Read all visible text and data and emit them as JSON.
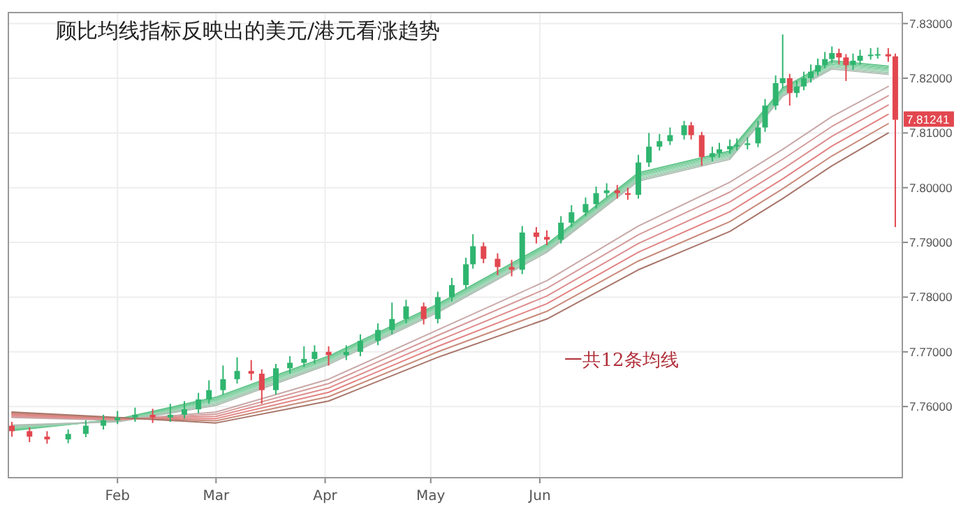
{
  "chart_data": {
    "type": "candlestick",
    "title": "顾比均线指标反映出的美元/港元看涨趋势",
    "x": [
      "--01-02",
      "--01-07",
      "--01-12",
      "--01-18",
      "--01-23",
      "--01-28",
      "--02-01",
      "--02-06",
      "--02-11",
      "--02-16",
      "--02-20",
      "--02-24",
      "--02-27",
      "--03-03",
      "--03-07",
      "--03-11",
      "--03-14",
      "--03-18",
      "--03-22",
      "--03-26",
      "--03-29",
      "--04-02",
      "--04-07",
      "--04-11",
      "--04-16",
      "--04-20",
      "--04-24",
      "--04-29",
      "--05-03",
      "--05-07",
      "--05-11",
      "--05-13",
      "--05-16",
      "--05-20",
      "--05-24",
      "--05-27",
      "--05-31",
      "--06-03",
      "--06-07",
      "--06-10",
      "--06-14",
      "--06-17",
      "--06-20",
      "--06-23",
      "--06-26",
      "--06-29",
      "--07-02",
      "--07-05",
      "--07-08",
      "--07-12",
      "--07-14",
      "--07-17",
      "--07-20",
      "--07-22",
      "--07-25",
      "--07-27",
      "--07-30",
      "--08-02",
      "--08-04",
      "--08-07",
      "--08-09",
      "--08-11",
      "--08-13",
      "--08-15",
      "--08-17",
      "--08-19",
      "--08-21",
      "--08-23",
      "--08-25",
      "--08-27",
      "--08-29",
      "--08-31",
      "--09-03",
      "--09-05",
      "--09-08",
      "--09-10"
    ],
    "ohlc": [
      [
        7.7565,
        7.7572,
        7.7545,
        7.7555
      ],
      [
        7.7555,
        7.7562,
        7.7535,
        7.7545
      ],
      [
        7.7545,
        7.7555,
        7.7532,
        7.754
      ],
      [
        7.754,
        7.7558,
        7.7533,
        7.755
      ],
      [
        7.755,
        7.7575,
        7.7544,
        7.7565
      ],
      [
        7.7565,
        7.7585,
        7.7558,
        7.7575
      ],
      [
        7.7575,
        7.7592,
        7.7568,
        7.758
      ],
      [
        7.758,
        7.7598,
        7.7572,
        7.7585
      ],
      [
        7.7585,
        7.7596,
        7.757,
        7.758
      ],
      [
        7.758,
        7.7605,
        7.7572,
        7.7585
      ],
      [
        7.7585,
        7.761,
        7.7578,
        7.7595
      ],
      [
        7.7595,
        7.7625,
        7.7588,
        7.7613
      ],
      [
        7.7613,
        7.7648,
        7.7605,
        7.763
      ],
      [
        7.763,
        7.7675,
        7.7622,
        7.765
      ],
      [
        7.765,
        7.769,
        7.7642,
        7.7665
      ],
      [
        7.7665,
        7.7685,
        7.7648,
        7.766
      ],
      [
        7.766,
        7.7668,
        7.7605,
        7.763
      ],
      [
        7.763,
        7.7678,
        7.7622,
        7.767
      ],
      [
        7.767,
        7.7692,
        7.766,
        7.768
      ],
      [
        7.768,
        7.771,
        7.7672,
        7.7687
      ],
      [
        7.7687,
        7.7712,
        7.7678,
        7.77
      ],
      [
        7.77,
        7.771,
        7.7675,
        7.7694
      ],
      [
        7.7694,
        7.7712,
        7.7685,
        7.77
      ],
      [
        7.77,
        7.7732,
        7.7692,
        7.772
      ],
      [
        7.772,
        7.7752,
        7.7712,
        7.774
      ],
      [
        7.774,
        7.779,
        7.7732,
        7.776
      ],
      [
        7.776,
        7.7795,
        7.7752,
        7.7783
      ],
      [
        7.7783,
        7.779,
        7.775,
        7.776
      ],
      [
        7.776,
        7.781,
        7.7752,
        7.78
      ],
      [
        7.78,
        7.7835,
        7.7792,
        7.7822
      ],
      [
        7.7822,
        7.7872,
        7.7815,
        7.786
      ],
      [
        7.786,
        7.7915,
        7.7852,
        7.7893
      ],
      [
        7.7893,
        7.79,
        7.7862,
        7.787
      ],
      [
        7.787,
        7.788,
        7.784,
        7.7855
      ],
      [
        7.7855,
        7.7868,
        7.7838,
        7.785
      ],
      [
        7.785,
        7.793,
        7.7842,
        7.7918
      ],
      [
        7.7918,
        7.7928,
        7.7898,
        7.791
      ],
      [
        7.791,
        7.7922,
        7.7895,
        7.7905
      ],
      [
        7.7905,
        7.7948,
        7.7898,
        7.7936
      ],
      [
        7.7936,
        7.7968,
        7.7928,
        7.7955
      ],
      [
        7.7955,
        7.7982,
        7.7948,
        7.797
      ],
      [
        7.797,
        7.8002,
        7.7962,
        7.799
      ],
      [
        7.799,
        7.8008,
        7.7982,
        7.7995
      ],
      [
        7.7995,
        7.8005,
        7.798,
        7.799
      ],
      [
        7.799,
        7.8,
        7.7978,
        7.7987
      ],
      [
        7.7987,
        7.806,
        7.798,
        7.8046
      ],
      [
        7.8046,
        7.81,
        7.8038,
        7.8075
      ],
      [
        7.8075,
        7.8098,
        7.8068,
        7.8085
      ],
      [
        7.8085,
        7.811,
        7.8078,
        7.8096
      ],
      [
        7.8096,
        7.8122,
        7.8088,
        7.8114
      ],
      [
        7.8114,
        7.812,
        7.8088,
        7.8096
      ],
      [
        7.8096,
        7.8102,
        7.804,
        7.8056
      ],
      [
        7.8056,
        7.8075,
        7.8048,
        7.8063
      ],
      [
        7.8063,
        7.8082,
        7.8055,
        7.807
      ],
      [
        7.807,
        7.8088,
        7.8062,
        7.8076
      ],
      [
        7.8076,
        7.809,
        7.8068,
        7.8078
      ],
      [
        7.8078,
        7.8092,
        7.807,
        7.8081
      ],
      [
        7.8081,
        7.8122,
        7.8074,
        7.811
      ],
      [
        7.811,
        7.8162,
        7.8102,
        7.815
      ],
      [
        7.815,
        7.8205,
        7.8142,
        7.8191
      ],
      [
        7.8191,
        7.828,
        7.8182,
        7.82
      ],
      [
        7.82,
        7.8208,
        7.815,
        7.8173
      ],
      [
        7.8173,
        7.8195,
        7.8165,
        7.8185
      ],
      [
        7.8185,
        7.8212,
        7.8178,
        7.82
      ],
      [
        7.82,
        7.8225,
        7.8192,
        7.8212
      ],
      [
        7.8212,
        7.8236,
        7.8205,
        7.8224
      ],
      [
        7.8224,
        7.8248,
        7.8218,
        7.8235
      ],
      [
        7.8235,
        7.8258,
        7.8228,
        7.8246
      ],
      [
        7.8246,
        7.8254,
        7.8225,
        7.8238
      ],
      [
        7.8238,
        7.8244,
        7.8195,
        7.8224
      ],
      [
        7.8224,
        7.8245,
        7.8215,
        7.8232
      ],
      [
        7.8232,
        7.8252,
        7.8225,
        7.8241
      ],
      [
        7.8241,
        7.8255,
        7.8234,
        7.8243
      ],
      [
        7.8243,
        7.8256,
        7.8236,
        7.8244
      ],
      [
        7.8244,
        7.8255,
        7.823,
        7.824
      ],
      [
        7.824,
        7.8245,
        7.7928,
        7.81241
      ]
    ],
    "colors": [
      "#e2474f",
      "#e2474f",
      "#e2474f",
      "#2fb56f",
      "#2fb56f",
      "#2fb56f",
      "#2fb56f",
      "#2fb56f",
      "#e2474f",
      "#2fb56f",
      "#2fb56f",
      "#2fb56f",
      "#2fb56f",
      "#2fb56f",
      "#2fb56f",
      "#e2474f",
      "#e2474f",
      "#2fb56f",
      "#2fb56f",
      "#2fb56f",
      "#2fb56f",
      "#e2474f",
      "#2fb56f",
      "#2fb56f",
      "#2fb56f",
      "#2fb56f",
      "#2fb56f",
      "#e2474f",
      "#2fb56f",
      "#2fb56f",
      "#2fb56f",
      "#2fb56f",
      "#e2474f",
      "#e2474f",
      "#e2474f",
      "#2fb56f",
      "#e2474f",
      "#e2474f",
      "#2fb56f",
      "#2fb56f",
      "#2fb56f",
      "#2fb56f",
      "#2fb56f",
      "#e2474f",
      "#e2474f",
      "#2fb56f",
      "#2fb56f",
      "#2fb56f",
      "#2fb56f",
      "#2fb56f",
      "#e2474f",
      "#e2474f",
      "#2fb56f",
      "#2fb56f",
      "#2fb56f",
      "#2fb56f",
      "#2fb56f",
      "#2fb56f",
      "#2fb56f",
      "#2fb56f",
      "#2fb56f",
      "#e2474f",
      "#2fb56f",
      "#2fb56f",
      "#2fb56f",
      "#2fb56f",
      "#2fb56f",
      "#2fb56f",
      "#e2474f",
      "#e2474f",
      "#2fb56f",
      "#2fb56f",
      "#2fb56f",
      "#2fb56f",
      "#e2474f",
      "#e2474f"
    ],
    "series": [
      {
        "type": "line",
        "color": "#5cc486",
        "x": [
          "--01-02",
          "--02-01",
          "--03-01",
          "--04-02",
          "--05-03",
          "--06-03",
          "--06-29",
          "--07-25",
          "--08-09",
          "--08-23",
          "--09-08"
        ],
        "values": [
          7.7556,
          7.7577,
          7.7617,
          7.7692,
          7.7787,
          7.7897,
          7.8027,
          7.8067,
          7.8182,
          7.8232,
          7.8222
        ]
      },
      {
        "type": "line",
        "color": "#6fca94",
        "x": [
          "--01-02",
          "--02-01",
          "--03-01",
          "--04-02",
          "--05-03",
          "--06-03",
          "--06-29",
          "--07-25",
          "--08-09",
          "--08-23",
          "--09-08"
        ],
        "values": [
          7.7558,
          7.7576,
          7.7614,
          7.7689,
          7.7784,
          7.7894,
          7.8024,
          7.8064,
          7.8179,
          7.8229,
          7.8219
        ]
      },
      {
        "type": "line",
        "color": "#82d0a2",
        "x": [
          "--01-02",
          "--02-01",
          "--03-01",
          "--04-02",
          "--05-03",
          "--06-03",
          "--06-29",
          "--07-25",
          "--08-09",
          "--08-23",
          "--09-08"
        ],
        "values": [
          7.756,
          7.7575,
          7.7611,
          7.7686,
          7.7781,
          7.7891,
          7.8021,
          7.8061,
          7.8176,
          7.8226,
          7.8216
        ]
      },
      {
        "type": "line",
        "color": "#95d6b0",
        "x": [
          "--01-02",
          "--02-01",
          "--03-01",
          "--04-02",
          "--05-03",
          "--06-03",
          "--06-29",
          "--07-25",
          "--08-09",
          "--08-23",
          "--09-08"
        ],
        "values": [
          7.7562,
          7.7574,
          7.7608,
          7.7683,
          7.7778,
          7.7888,
          7.8018,
          7.8058,
          7.8173,
          7.8223,
          7.8213
        ]
      },
      {
        "type": "line",
        "color": "#a3c9b1",
        "x": [
          "--01-02",
          "--02-01",
          "--03-01",
          "--04-02",
          "--05-03",
          "--06-03",
          "--06-29",
          "--07-25",
          "--08-09",
          "--08-23",
          "--09-08"
        ],
        "values": [
          7.7564,
          7.7573,
          7.7605,
          7.768,
          7.7775,
          7.7885,
          7.8015,
          7.8055,
          7.817,
          7.822,
          7.821
        ]
      },
      {
        "type": "line",
        "color": "#b0bfb5",
        "x": [
          "--01-02",
          "--02-01",
          "--03-01",
          "--04-02",
          "--05-03",
          "--06-03",
          "--06-29",
          "--07-25",
          "--08-09",
          "--08-23",
          "--09-08"
        ],
        "values": [
          7.7566,
          7.7572,
          7.7602,
          7.7677,
          7.7772,
          7.7882,
          7.8012,
          7.8052,
          7.8167,
          7.8217,
          7.8207
        ]
      },
      {
        "type": "line",
        "color": "#c9a8a8",
        "x": [
          "--01-02",
          "--02-01",
          "--03-01",
          "--04-02",
          "--05-03",
          "--06-03",
          "--06-29",
          "--07-25",
          "--08-09",
          "--08-23",
          "--09-08"
        ],
        "values": [
          7.758,
          7.7575,
          7.759,
          7.765,
          7.774,
          7.783,
          7.793,
          7.801,
          7.807,
          7.813,
          7.8185
        ]
      },
      {
        "type": "line",
        "color": "#d69a9a",
        "x": [
          "--01-02",
          "--02-01",
          "--03-01",
          "--04-02",
          "--05-03",
          "--06-03",
          "--06-29",
          "--07-25",
          "--08-09",
          "--08-23",
          "--09-08"
        ],
        "values": [
          7.7582,
          7.7576,
          7.7586,
          7.7642,
          7.773,
          7.7816,
          7.7914,
          7.7992,
          7.8052,
          7.8112,
          7.8168
        ]
      },
      {
        "type": "line",
        "color": "#de8e8e",
        "x": [
          "--01-02",
          "--02-01",
          "--03-01",
          "--04-02",
          "--05-03",
          "--06-03",
          "--06-29",
          "--07-25",
          "--08-09",
          "--08-23",
          "--09-08"
        ],
        "values": [
          7.7584,
          7.7577,
          7.7582,
          7.7634,
          7.772,
          7.7802,
          7.7898,
          7.7974,
          7.8034,
          7.8094,
          7.8151
        ]
      },
      {
        "type": "line",
        "color": "#e38383",
        "x": [
          "--01-02",
          "--02-01",
          "--03-01",
          "--04-02",
          "--05-03",
          "--06-03",
          "--06-29",
          "--07-25",
          "--08-09",
          "--08-23",
          "--09-08"
        ],
        "values": [
          7.7586,
          7.7578,
          7.7578,
          7.7626,
          7.771,
          7.7788,
          7.7882,
          7.7956,
          7.8016,
          7.8076,
          7.8134
        ]
      },
      {
        "type": "line",
        "color": "#c98a7a",
        "x": [
          "--01-02",
          "--02-01",
          "--03-01",
          "--04-02",
          "--05-03",
          "--06-03",
          "--06-29",
          "--07-25",
          "--08-09",
          "--08-23",
          "--09-08"
        ],
        "values": [
          7.7588,
          7.7579,
          7.7574,
          7.7618,
          7.77,
          7.7774,
          7.7866,
          7.7938,
          7.7998,
          7.8058,
          7.8117
        ]
      },
      {
        "type": "line",
        "color": "#a8756a",
        "x": [
          "--01-02",
          "--02-01",
          "--03-01",
          "--04-02",
          "--05-03",
          "--06-03",
          "--06-29",
          "--07-25",
          "--08-09",
          "--08-23",
          "--09-08"
        ],
        "values": [
          7.759,
          7.758,
          7.757,
          7.761,
          7.769,
          7.776,
          7.785,
          7.792,
          7.798,
          7.804,
          7.81
        ]
      }
    ],
    "xlim": [
      "--01-01",
      "--09-12"
    ],
    "xticks": [
      {
        "value": "--02-01",
        "label": "Feb"
      },
      {
        "value": "--03-01",
        "label": "Mar"
      },
      {
        "value": "--04-01",
        "label": "Apr"
      },
      {
        "value": "--05-01",
        "label": "May"
      },
      {
        "value": "--06-01",
        "label": "Jun"
      }
    ],
    "ylim": [
      7.747,
      7.832
    ],
    "yticks": [
      {
        "value": 7.76,
        "label": "7.76000"
      },
      {
        "value": 7.77,
        "label": "7.77000"
      },
      {
        "value": 7.78,
        "label": "7.78000"
      },
      {
        "value": 7.79,
        "label": "7.79000"
      },
      {
        "value": 7.8,
        "label": "7.80000"
      },
      {
        "value": 7.81,
        "label": "7.81000"
      },
      {
        "value": 7.82,
        "label": "7.82000"
      },
      {
        "value": 7.83,
        "label": "7.83000"
      }
    ],
    "grid": true,
    "annotations": [
      "一共12条均线",
      {
        "text": "7.81241",
        "x": "--09-10",
        "y": 7.81241
      }
    ]
  }
}
